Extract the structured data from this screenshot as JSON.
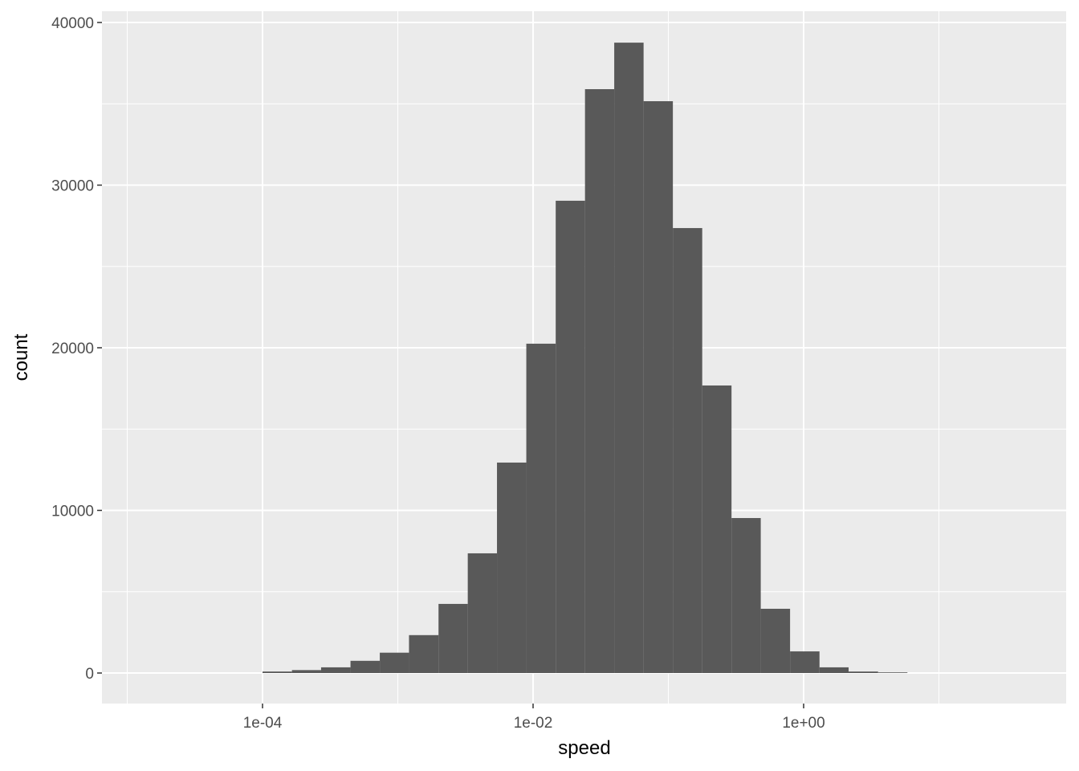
{
  "chart_data": {
    "type": "bar",
    "subtype": "histogram",
    "xlabel": "speed",
    "ylabel": "count",
    "x_scale": "log10",
    "xlim": [
      6.5e-06,
      87
    ],
    "ylim": [
      -1900,
      40700
    ],
    "x_ticks": [
      {
        "value": 0.0001,
        "label": "1e-04"
      },
      {
        "value": 0.01,
        "label": "1e-02"
      },
      {
        "value": 1,
        "label": "1e+00"
      }
    ],
    "x_minor_ticks": [
      1e-05,
      0.001,
      0.1,
      10
    ],
    "y_ticks": [
      {
        "value": 0,
        "label": "0"
      },
      {
        "value": 10000,
        "label": "10000"
      },
      {
        "value": 20000,
        "label": "20000"
      },
      {
        "value": 30000,
        "label": "30000"
      },
      {
        "value": 40000,
        "label": "40000"
      }
    ],
    "y_minor_ticks": [
      5000,
      15000,
      25000,
      35000
    ],
    "grid": true,
    "bar_color": "#595959",
    "panel_background": "#ebebeb",
    "bin_edges": [
      0.0001,
      0.000165,
      0.000271,
      0.000447,
      0.000736,
      0.00121,
      0.002,
      0.00329,
      0.00541,
      0.00891,
      0.0147,
      0.0242,
      0.0398,
      0.0656,
      0.108,
      0.178,
      0.293,
      0.482,
      0.794,
      1.31,
      2.15,
      3.55,
      5.85
    ],
    "counts": [
      90,
      180,
      350,
      750,
      1250,
      2330,
      4250,
      7360,
      12940,
      20250,
      29040,
      35900,
      38760,
      35160,
      27360,
      17680,
      9530,
      3950,
      1330,
      350,
      90,
      40
    ]
  }
}
